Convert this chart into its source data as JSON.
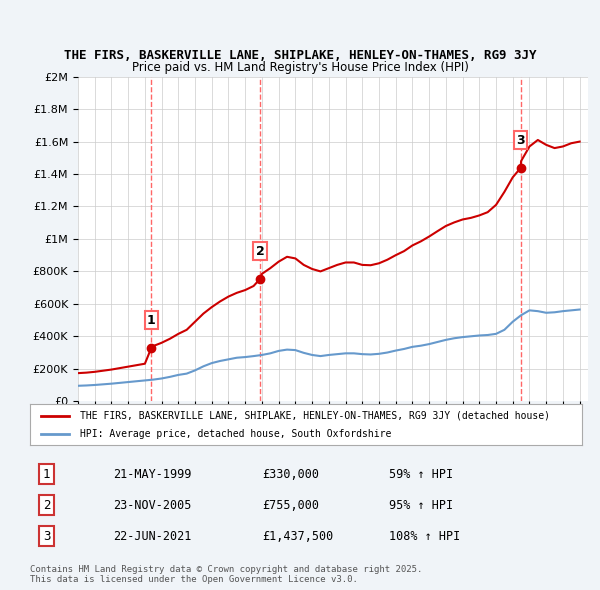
{
  "title_line1": "THE FIRS, BASKERVILLE LANE, SHIPLAKE, HENLEY-ON-THAMES, RG9 3JY",
  "title_line2": "Price paid vs. HM Land Registry's House Price Index (HPI)",
  "hpi_color": "#6699cc",
  "price_color": "#cc0000",
  "marker_color": "#cc0000",
  "vline_color": "#ff6666",
  "background_color": "#f0f4f8",
  "plot_bg_color": "#ffffff",
  "ylim": [
    0,
    2000000
  ],
  "yticks": [
    0,
    200000,
    400000,
    600000,
    800000,
    1000000,
    1200000,
    1400000,
    1600000,
    1800000,
    2000000
  ],
  "ytick_labels": [
    "£0",
    "£200K",
    "£400K",
    "£600K",
    "£800K",
    "£1M",
    "£1.2M",
    "£1.4M",
    "£1.6M",
    "£1.8M",
    "£2M"
  ],
  "sale_years": [
    1999.39,
    2005.9,
    2021.47
  ],
  "sale_prices": [
    330000,
    755000,
    1437500
  ],
  "sale_labels": [
    "1",
    "2",
    "3"
  ],
  "legend_label_red": "THE FIRS, BASKERVILLE LANE, SHIPLAKE, HENLEY-ON-THAMES, RG9 3JY (detached house)",
  "legend_label_blue": "HPI: Average price, detached house, South Oxfordshire",
  "table_data": [
    [
      "1",
      "21-MAY-1999",
      "£330,000",
      "59% ↑ HPI"
    ],
    [
      "2",
      "23-NOV-2005",
      "£755,000",
      "95% ↑ HPI"
    ],
    [
      "3",
      "22-JUN-2021",
      "£1,437,500",
      "108% ↑ HPI"
    ]
  ],
  "footnote": "Contains HM Land Registry data © Crown copyright and database right 2025.\nThis data is licensed under the Open Government Licence v3.0.",
  "hpi_x": [
    1995,
    1995.5,
    1996,
    1996.5,
    1997,
    1997.5,
    1998,
    1998.5,
    1999,
    1999.5,
    2000,
    2000.5,
    2001,
    2001.5,
    2002,
    2002.5,
    2003,
    2003.5,
    2004,
    2004.5,
    2005,
    2005.5,
    2006,
    2006.5,
    2007,
    2007.5,
    2008,
    2008.5,
    2009,
    2009.5,
    2010,
    2010.5,
    2011,
    2011.5,
    2012,
    2012.5,
    2013,
    2013.5,
    2014,
    2014.5,
    2015,
    2015.5,
    2016,
    2016.5,
    2017,
    2017.5,
    2018,
    2018.5,
    2019,
    2019.5,
    2020,
    2020.5,
    2021,
    2021.5,
    2022,
    2022.5,
    2023,
    2023.5,
    2024,
    2024.5,
    2025
  ],
  "hpi_y": [
    95000,
    97000,
    100000,
    104000,
    108000,
    113000,
    118000,
    123000,
    128000,
    133000,
    140000,
    150000,
    162000,
    170000,
    190000,
    215000,
    235000,
    248000,
    258000,
    268000,
    272000,
    278000,
    285000,
    295000,
    310000,
    318000,
    315000,
    298000,
    285000,
    278000,
    285000,
    290000,
    295000,
    295000,
    290000,
    288000,
    292000,
    300000,
    312000,
    322000,
    335000,
    342000,
    352000,
    365000,
    378000,
    388000,
    395000,
    400000,
    405000,
    408000,
    415000,
    440000,
    490000,
    530000,
    560000,
    555000,
    545000,
    548000,
    555000,
    560000,
    565000
  ],
  "price_x": [
    1995,
    1995.5,
    1996,
    1996.5,
    1997,
    1997.5,
    1998,
    1998.5,
    1999,
    1999.39,
    1999.5,
    2000,
    2000.5,
    2001,
    2001.5,
    2002,
    2002.5,
    2003,
    2003.5,
    2004,
    2004.5,
    2005,
    2005.5,
    2005.9,
    2006,
    2006.5,
    2007,
    2007.5,
    2008,
    2008.5,
    2009,
    2009.5,
    2010,
    2010.5,
    2011,
    2011.5,
    2012,
    2012.5,
    2013,
    2013.5,
    2014,
    2014.5,
    2015,
    2015.5,
    2016,
    2016.5,
    2017,
    2017.5,
    2018,
    2018.5,
    2019,
    2019.5,
    2020,
    2020.5,
    2021,
    2021.47,
    2021.5,
    2022,
    2022.5,
    2023,
    2023.5,
    2024,
    2024.5,
    2025
  ],
  "price_y": [
    173000,
    176000,
    181000,
    188000,
    195000,
    204000,
    213000,
    222000,
    231000,
    330000,
    340000,
    360000,
    385000,
    415000,
    440000,
    490000,
    540000,
    580000,
    615000,
    645000,
    668000,
    685000,
    710000,
    755000,
    785000,
    820000,
    860000,
    890000,
    880000,
    840000,
    815000,
    800000,
    820000,
    840000,
    855000,
    855000,
    840000,
    838000,
    850000,
    872000,
    900000,
    925000,
    960000,
    985000,
    1015000,
    1048000,
    1080000,
    1102000,
    1120000,
    1130000,
    1145000,
    1165000,
    1210000,
    1290000,
    1380000,
    1437500,
    1480000,
    1570000,
    1610000,
    1580000,
    1560000,
    1570000,
    1590000,
    1600000
  ]
}
